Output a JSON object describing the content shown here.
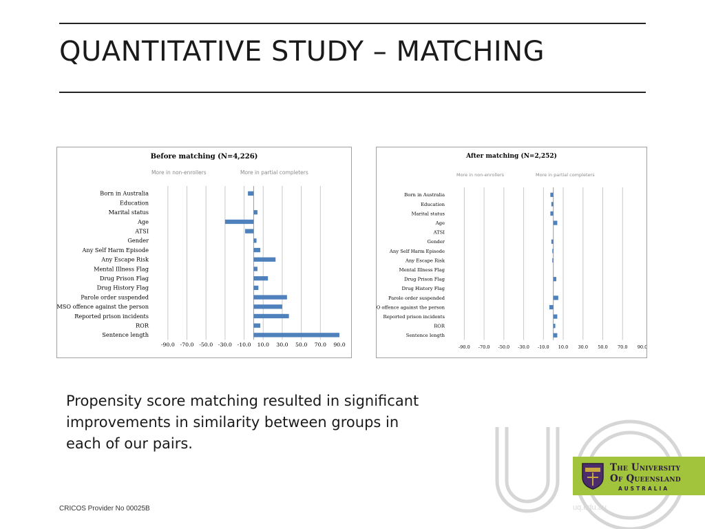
{
  "slide": {
    "title": "QUANTITATIVE STUDY – MATCHING",
    "body_text": "Propensity score matching resulted in significant improvements in similarity between groups in each of our pairs.",
    "footer": "CRICOS Provider No 00025B",
    "url": "uq.edu.au",
    "logo": {
      "line1": "The University",
      "line2": "Of Queensland",
      "line3": "AUSTRALIA",
      "background_color": "#a2c43c"
    }
  },
  "chart_data": [
    {
      "type": "bar",
      "orientation": "horizontal",
      "title": "Before matching (N=4,226)",
      "direction_labels": [
        "More in non-enrollers",
        "More in partial completers"
      ],
      "categories": [
        "Born in Australia",
        "Education",
        "Marital status",
        "Age",
        "ATSI",
        "Gender",
        "Any Self Harm Episode",
        "Any Escape Risk",
        "Mental Illness Flag",
        "Drug Prison Flag",
        "Drug History Flag",
        "Parole order suspended",
        "MSO offence against the person",
        "Reported prison incidents",
        "ROR",
        "Sentence length"
      ],
      "values": [
        -6,
        0,
        4,
        -30,
        -9,
        3,
        7,
        23,
        4,
        15,
        5,
        35,
        30,
        37,
        7,
        90
      ],
      "x_ticks": [
        "-90.0",
        "-70.0",
        "-50.0",
        "-30.0",
        "-10.0",
        "10.0",
        "30.0",
        "50.0",
        "70.0",
        "90.0"
      ],
      "xlim": [
        -100,
        90
      ],
      "grid": true,
      "bar_color": "#4f81bd"
    },
    {
      "type": "bar",
      "orientation": "horizontal",
      "title": "After matching (N=2,252)",
      "direction_labels": [
        "More in non-enrollers",
        "More in partial completers"
      ],
      "categories": [
        "Born in Australia",
        "Education",
        "Marital status",
        "Age",
        "ATSI",
        "Gender",
        "Any Self Harm Episode",
        "Any Escape Risk",
        "Mental Illness Flag",
        "Drug Prison Flag",
        "Drug History Flag",
        "Parole order suspended",
        "MSO offence against the person",
        "Reported prison incidents",
        "ROR",
        "Sentence length"
      ],
      "values": [
        -3,
        -2,
        -3,
        4,
        0,
        -2,
        -1,
        -1,
        0,
        3,
        0,
        5,
        -4,
        4,
        2,
        4
      ],
      "x_ticks": [
        "-90.0",
        "-70.0",
        "-50.0",
        "-30.0",
        "-10.0",
        "10.0",
        "30.0",
        "50.0",
        "70.0",
        "90.0"
      ],
      "xlim": [
        -100,
        90
      ],
      "grid": true,
      "bar_color": "#4f81bd"
    }
  ]
}
